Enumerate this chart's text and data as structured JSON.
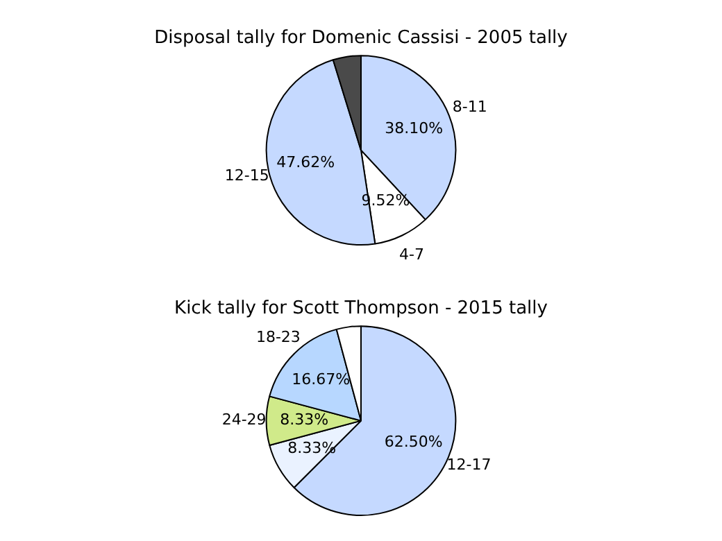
{
  "chart_data": [
    {
      "type": "pie",
      "title": "Disposal tally for Domenic Cassisi - 2005 tally",
      "categories": [
        "8-11",
        "4-7",
        "12-15",
        null
      ],
      "values": [
        38.1,
        9.52,
        47.62,
        4.76
      ],
      "value_labels": [
        "38.10%",
        "9.52%",
        "47.62%",
        null
      ],
      "colors": [
        "#c5d9ff",
        "#ffffff",
        "#c5d9ff",
        "#4a4a4a"
      ]
    },
    {
      "type": "pie",
      "title": "Kick tally for Scott Thompson - 2015 tally",
      "categories": [
        "12-17",
        null,
        "24-29",
        "18-23",
        null
      ],
      "values": [
        62.5,
        8.33,
        8.33,
        16.67,
        4.17
      ],
      "value_labels": [
        "62.50%",
        "8.33%",
        "8.33%",
        "16.67%",
        null
      ],
      "colors": [
        "#c5d9ff",
        "#eaf2ff",
        "#d0ea8a",
        "#b7d7ff",
        "#ffffff"
      ]
    }
  ]
}
